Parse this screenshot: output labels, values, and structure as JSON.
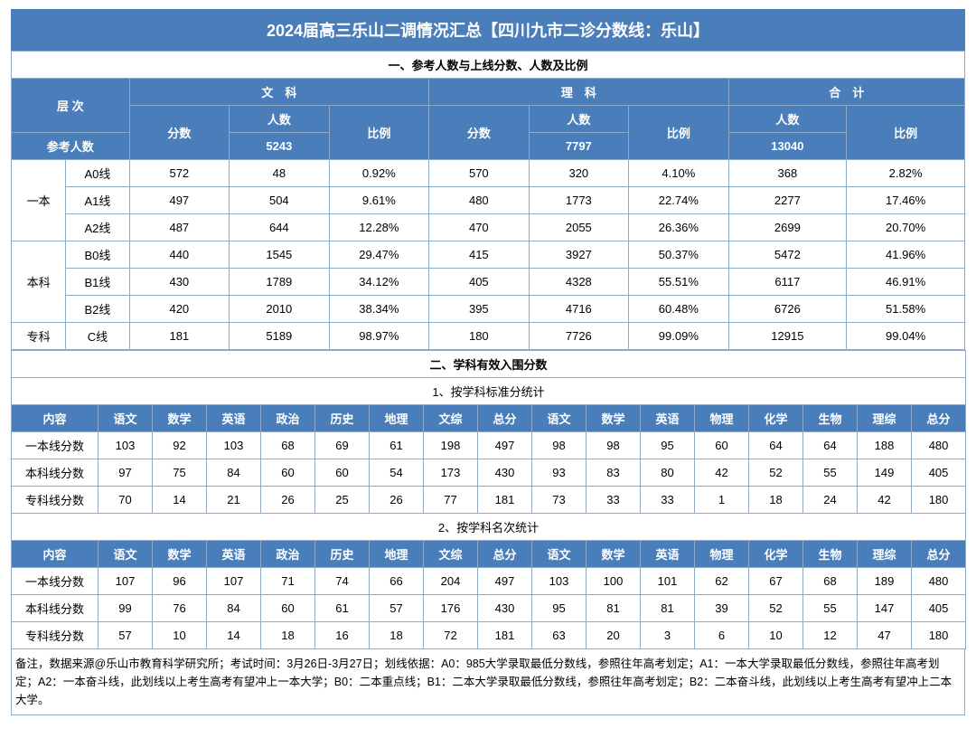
{
  "title": "2024届高三乐山二调情况汇总【四川九市二诊分数线：乐山】",
  "section1_title": "一、参考人数与上线分数、人数及比例",
  "hdr": {
    "tier": "层 次",
    "wenke": "文　科",
    "like": "理　科",
    "heji": "合　计",
    "fenshu": "分数",
    "renshu": "人数",
    "bili": "比例",
    "ref": "参考人数",
    "ref_wen": "5243",
    "ref_li": "7797",
    "ref_he": "13040"
  },
  "tiers": [
    {
      "grp": "一本",
      "sub": "A0线",
      "ws": "572",
      "wr": "48",
      "wb": "0.92%",
      "ls": "570",
      "lr": "320",
      "lb": "4.10%",
      "hr": "368",
      "hb": "2.82%"
    },
    {
      "grp": "",
      "sub": "A1线",
      "ws": "497",
      "wr": "504",
      "wb": "9.61%",
      "ls": "480",
      "lr": "1773",
      "lb": "22.74%",
      "hr": "2277",
      "hb": "17.46%"
    },
    {
      "grp": "",
      "sub": "A2线",
      "ws": "487",
      "wr": "644",
      "wb": "12.28%",
      "ls": "470",
      "lr": "2055",
      "lb": "26.36%",
      "hr": "2699",
      "hb": "20.70%"
    },
    {
      "grp": "本科",
      "sub": "B0线",
      "ws": "440",
      "wr": "1545",
      "wb": "29.47%",
      "ls": "415",
      "lr": "3927",
      "lb": "50.37%",
      "hr": "5472",
      "hb": "41.96%"
    },
    {
      "grp": "",
      "sub": "B1线",
      "ws": "430",
      "wr": "1789",
      "wb": "34.12%",
      "ls": "405",
      "lr": "4328",
      "lb": "55.51%",
      "hr": "6117",
      "hb": "46.91%"
    },
    {
      "grp": "",
      "sub": "B2线",
      "ws": "420",
      "wr": "2010",
      "wb": "38.34%",
      "ls": "395",
      "lr": "4716",
      "lb": "60.48%",
      "hr": "6726",
      "hb": "51.58%"
    },
    {
      "grp": "专科",
      "sub": "C线",
      "ws": "181",
      "wr": "5189",
      "wb": "98.97%",
      "ls": "180",
      "lr": "7726",
      "lb": "99.09%",
      "hr": "12915",
      "hb": "99.04%"
    }
  ],
  "section2_title": "二、学科有效入围分数",
  "sub1_title": "1、按学科标准分统计",
  "sub2_title": "2、按学科名次统计",
  "subj_hdr": [
    "内容",
    "语文",
    "数学",
    "英语",
    "政治",
    "历史",
    "地理",
    "文综",
    "总分",
    "语文",
    "数学",
    "英语",
    "物理",
    "化学",
    "生物",
    "理综",
    "总分"
  ],
  "t2a": [
    [
      "一本线分数",
      "103",
      "92",
      "103",
      "68",
      "69",
      "61",
      "198",
      "497",
      "98",
      "98",
      "95",
      "60",
      "64",
      "64",
      "188",
      "480"
    ],
    [
      "本科线分数",
      "97",
      "75",
      "84",
      "60",
      "60",
      "54",
      "173",
      "430",
      "93",
      "83",
      "80",
      "42",
      "52",
      "55",
      "149",
      "405"
    ],
    [
      "专科线分数",
      "70",
      "14",
      "21",
      "26",
      "25",
      "26",
      "77",
      "181",
      "73",
      "33",
      "33",
      "1",
      "18",
      "24",
      "42",
      "180"
    ]
  ],
  "t2b": [
    [
      "一本线分数",
      "107",
      "96",
      "107",
      "71",
      "74",
      "66",
      "204",
      "497",
      "103",
      "100",
      "101",
      "62",
      "67",
      "68",
      "189",
      "480"
    ],
    [
      "本科线分数",
      "99",
      "76",
      "84",
      "60",
      "61",
      "57",
      "176",
      "430",
      "95",
      "81",
      "81",
      "39",
      "52",
      "55",
      "147",
      "405"
    ],
    [
      "专科线分数",
      "57",
      "10",
      "14",
      "18",
      "16",
      "18",
      "72",
      "181",
      "63",
      "20",
      "3",
      "6",
      "10",
      "12",
      "47",
      "180"
    ]
  ],
  "footnote": "备注，数据来源@乐山市教育科学研究所；考试时间：3月26日-3月27日；划线依据：A0：985大学录取最低分数线，参照往年高考划定；A1：一本大学录取最低分数线，参照往年高考划定；A2：一本奋斗线，此划线以上考生高考有望冲上一本大学；B0：二本重点线；B1：二本大学录取最低分数线，参照往年高考划定；B2：二本奋斗线，此划线以上考生高考有望冲上二本大学。"
}
